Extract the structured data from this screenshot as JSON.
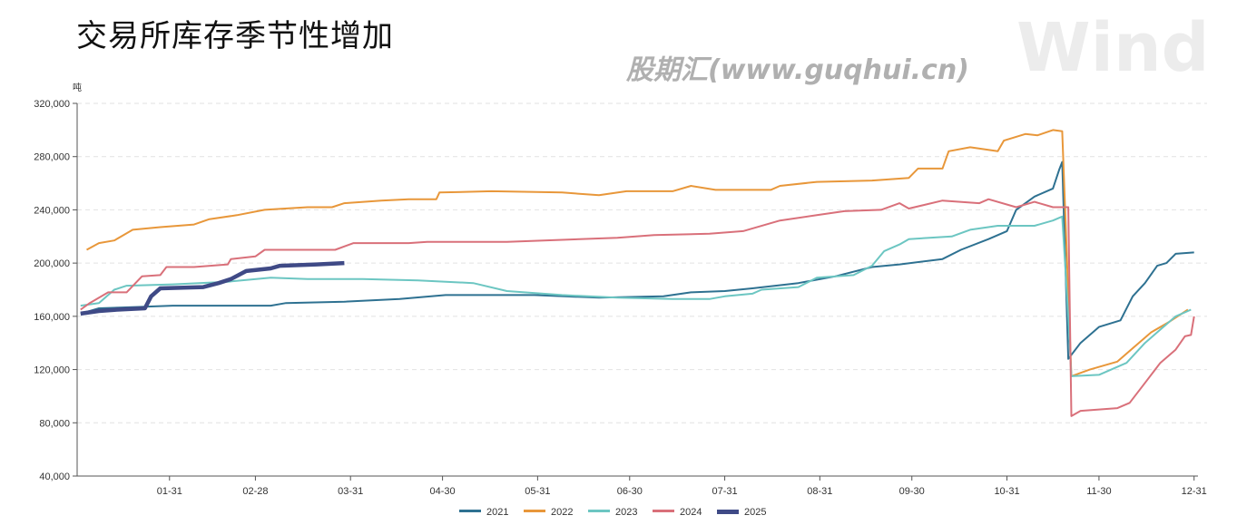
{
  "title": "交易所库存季节性增加",
  "watermark": "股期汇(www.guqhui.cn)",
  "watermark_logo": "Wind",
  "chart_data": {
    "type": "line",
    "title": "交易所库存季节性增加",
    "ylabel": "吨",
    "xlabel": "",
    "x_unit": "day of year",
    "ylim": [
      40000,
      320000
    ],
    "yticks": [
      40000,
      80000,
      120000,
      160000,
      200000,
      240000,
      280000,
      320000
    ],
    "ytick_labels": [
      "40,000",
      "80,000",
      "120,000",
      "160,000",
      "200,000",
      "240,000",
      "280,000",
      "320,000"
    ],
    "xticks": [
      31,
      59,
      90,
      120,
      151,
      181,
      212,
      243,
      273,
      304,
      334,
      365
    ],
    "xtick_labels": [
      "01-31",
      "02-28",
      "03-31",
      "04-30",
      "05-31",
      "06-30",
      "07-31",
      "08-31",
      "09-30",
      "10-31",
      "11-30",
      "12-31"
    ],
    "grid": true,
    "legend": "bottom-center",
    "series": [
      {
        "name": "2021",
        "color": "#2e7191",
        "width": 2,
        "x": [
          2,
          8,
          20,
          32,
          64,
          69,
          88,
          106,
          121,
          150,
          171,
          192,
          201,
          212,
          221,
          236,
          248,
          260,
          269,
          283,
          289,
          298,
          304,
          307,
          313,
          319,
          321,
          322,
          324,
          328,
          334,
          341,
          345,
          349,
          353,
          356,
          359,
          365
        ],
        "y": [
          162000,
          166000,
          167000,
          168000,
          168000,
          170000,
          171000,
          173000,
          176000,
          176000,
          174000,
          175000,
          178000,
          179000,
          181000,
          185000,
          190000,
          197000,
          199000,
          203000,
          210000,
          218000,
          224000,
          240000,
          250000,
          256000,
          270000,
          276000,
          128000,
          140000,
          152000,
          157000,
          175000,
          185000,
          198000,
          200000,
          207000,
          208000
        ]
      },
      {
        "name": "2022",
        "color": "#e8973a",
        "width": 2,
        "x": [
          4,
          8,
          13,
          19,
          28,
          39,
          44,
          53,
          62,
          76,
          84,
          88,
          100,
          109,
          118,
          119,
          136,
          159,
          171,
          180,
          195,
          201,
          209,
          227,
          230,
          242,
          260,
          272,
          275,
          283,
          285,
          292,
          301,
          303,
          310,
          314,
          319,
          322,
          325,
          331,
          340,
          346,
          351,
          357,
          363
        ],
        "y": [
          210000,
          215000,
          217000,
          225000,
          227000,
          229000,
          233000,
          236000,
          240000,
          242000,
          242000,
          245000,
          247000,
          248000,
          248000,
          253000,
          254000,
          253000,
          251000,
          254000,
          254000,
          258000,
          255000,
          255000,
          258000,
          261000,
          262000,
          264000,
          271000,
          271000,
          284000,
          287000,
          284000,
          292000,
          297000,
          296000,
          300000,
          299000,
          115000,
          120000,
          126000,
          138000,
          148000,
          156000,
          165000
        ]
      },
      {
        "name": "2023",
        "color": "#6cc6c2",
        "width": 2,
        "x": [
          2,
          8,
          13,
          17,
          32,
          50,
          64,
          76,
          94,
          112,
          130,
          141,
          159,
          177,
          195,
          207,
          212,
          221,
          224,
          236,
          242,
          254,
          260,
          264,
          269,
          272,
          286,
          292,
          301,
          313,
          319,
          322,
          324,
          325,
          334,
          343,
          349,
          354,
          359,
          364
        ],
        "y": [
          168000,
          170000,
          180000,
          183000,
          184000,
          186000,
          189000,
          188000,
          188000,
          187000,
          185000,
          179000,
          176000,
          174000,
          173000,
          173000,
          175000,
          177000,
          180000,
          182000,
          189000,
          191000,
          198000,
          209000,
          214000,
          218000,
          220000,
          225000,
          228000,
          228000,
          232000,
          235000,
          160000,
          115000,
          116000,
          125000,
          140000,
          150000,
          160000,
          165000
        ]
      },
      {
        "name": "2024",
        "color": "#d9707a",
        "width": 2,
        "x": [
          2,
          5,
          11,
          17,
          22,
          28,
          30,
          39,
          50,
          51,
          59,
          62,
          85,
          91,
          109,
          115,
          141,
          153,
          177,
          189,
          207,
          218,
          230,
          242,
          251,
          263,
          269,
          272,
          283,
          295,
          298,
          307,
          313,
          319,
          324,
          325,
          328,
          340,
          344,
          349,
          354,
          359,
          362,
          364,
          365
        ],
        "y": [
          165000,
          170000,
          178000,
          178000,
          190000,
          191000,
          197000,
          197000,
          199000,
          203000,
          205000,
          210000,
          210000,
          215000,
          215000,
          216000,
          216000,
          217000,
          219000,
          221000,
          222000,
          224000,
          232000,
          236000,
          239000,
          240000,
          245000,
          241000,
          247000,
          245000,
          248000,
          242000,
          246000,
          242000,
          242000,
          85000,
          89000,
          91000,
          95000,
          110000,
          125000,
          135000,
          145000,
          146000,
          160000
        ]
      },
      {
        "name": "2025",
        "color": "#3f4a86",
        "width": 4.5,
        "x": [
          2,
          8,
          14,
          23,
          25,
          28,
          42,
          47,
          51,
          56,
          64,
          67,
          79,
          88
        ],
        "y": [
          162000,
          164000,
          165000,
          166000,
          175000,
          181000,
          182000,
          185000,
          188000,
          194000,
          196000,
          198000,
          199000,
          200000
        ]
      }
    ]
  }
}
